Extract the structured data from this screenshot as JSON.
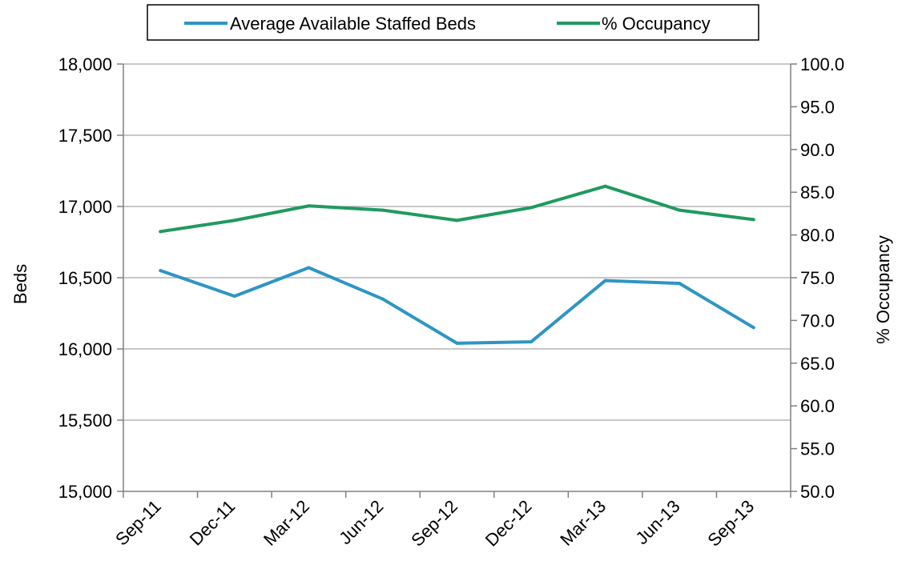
{
  "chart_data": {
    "type": "line",
    "categories": [
      "Sep-11",
      "Dec-11",
      "Mar-12",
      "Jun-12",
      "Sep-12",
      "Dec-12",
      "Mar-13",
      "Jun-13",
      "Sep-13"
    ],
    "series": [
      {
        "name": "Average Available Staffed Beds",
        "axis": "left",
        "color": "#2e95c4",
        "values": [
          16550,
          16370,
          16570,
          16350,
          16040,
          16050,
          16480,
          16460,
          16150
        ]
      },
      {
        "name": "% Occupancy",
        "axis": "right",
        "color": "#1f9a5f",
        "values": [
          80.4,
          81.7,
          83.4,
          82.9,
          81.7,
          83.2,
          85.7,
          82.9,
          81.8
        ]
      }
    ],
    "ylabel": "Beds",
    "y2label": "% Occupancy",
    "ylim": [
      15000,
      18000
    ],
    "y2lim": [
      50.0,
      100.0
    ],
    "yticks": [
      "15,000",
      "15,500",
      "16,000",
      "16,500",
      "17,000",
      "17,500",
      "18,000"
    ],
    "y2ticks": [
      "50.0",
      "55.0",
      "60.0",
      "65.0",
      "70.0",
      "75.0",
      "80.0",
      "85.0",
      "90.0",
      "95.0",
      "100.0"
    ],
    "grid": "horizontal",
    "legend": "top"
  }
}
